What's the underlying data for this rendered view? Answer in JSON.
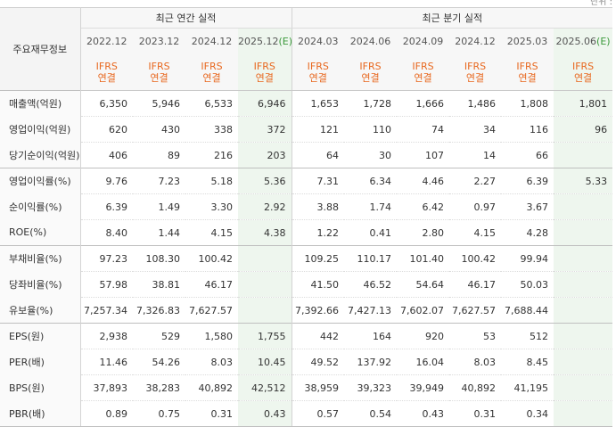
{
  "unit_label": "단위 :",
  "header": {
    "corner": "주요재무정보",
    "annual_group": "최근 연간 실적",
    "quarter_group": "최근 분기 실적",
    "annual_periods": [
      "2022.12",
      "2023.12",
      "2024.12",
      "2025.12"
    ],
    "annual_estimate_mark": "(E)",
    "quarter_periods": [
      "2024.03",
      "2024.06",
      "2024.09",
      "2024.12",
      "2025.03",
      "2025.06"
    ],
    "quarter_estimate_mark": "(E)",
    "ifrs_line1": "IFRS",
    "ifrs_line2": "연결"
  },
  "rows": [
    {
      "label": "매출액(억원)",
      "values": [
        "6,350",
        "5,946",
        "6,533",
        "6,946",
        "1,653",
        "1,728",
        "1,666",
        "1,486",
        "1,808",
        "1,801"
      ]
    },
    {
      "label": "영업이익(억원)",
      "values": [
        "620",
        "430",
        "338",
        "372",
        "121",
        "110",
        "74",
        "34",
        "116",
        "96"
      ]
    },
    {
      "label": "당기순이익(억원)",
      "values": [
        "406",
        "89",
        "216",
        "203",
        "64",
        "30",
        "107",
        "14",
        "66",
        ""
      ]
    },
    {
      "label": "영업이익률(%)",
      "values": [
        "9.76",
        "7.23",
        "5.18",
        "5.36",
        "7.31",
        "6.34",
        "4.46",
        "2.27",
        "6.39",
        "5.33"
      ]
    },
    {
      "label": "순이익률(%)",
      "values": [
        "6.39",
        "1.49",
        "3.30",
        "2.92",
        "3.88",
        "1.74",
        "6.42",
        "0.97",
        "3.67",
        ""
      ]
    },
    {
      "label": "ROE(%)",
      "values": [
        "8.40",
        "1.44",
        "4.15",
        "4.38",
        "1.22",
        "0.41",
        "2.80",
        "4.15",
        "4.28",
        ""
      ]
    },
    {
      "label": "부채비율(%)",
      "values": [
        "97.23",
        "108.30",
        "100.42",
        "",
        "109.25",
        "110.17",
        "101.40",
        "100.42",
        "99.94",
        ""
      ]
    },
    {
      "label": "당좌비율(%)",
      "values": [
        "57.98",
        "38.81",
        "46.17",
        "",
        "41.50",
        "46.52",
        "54.64",
        "46.17",
        "50.03",
        ""
      ]
    },
    {
      "label": "유보율(%)",
      "values": [
        "7,257.34",
        "7,326.83",
        "7,627.57",
        "",
        "7,392.66",
        "7,427.13",
        "7,602.07",
        "7,627.57",
        "7,688.44",
        ""
      ]
    },
    {
      "label": "EPS(원)",
      "values": [
        "2,938",
        "529",
        "1,580",
        "1,755",
        "442",
        "164",
        "920",
        "53",
        "512",
        ""
      ]
    },
    {
      "label": "PER(배)",
      "values": [
        "11.46",
        "54.26",
        "8.03",
        "10.45",
        "49.52",
        "137.92",
        "16.04",
        "8.03",
        "8.45",
        ""
      ]
    },
    {
      "label": "BPS(원)",
      "values": [
        "37,893",
        "38,283",
        "40,892",
        "42,512",
        "38,959",
        "39,323",
        "39,949",
        "40,892",
        "41,195",
        ""
      ]
    },
    {
      "label": "PBR(배)",
      "values": [
        "0.89",
        "0.75",
        "0.31",
        "0.43",
        "0.57",
        "0.54",
        "0.43",
        "0.31",
        "0.34",
        ""
      ]
    }
  ]
}
